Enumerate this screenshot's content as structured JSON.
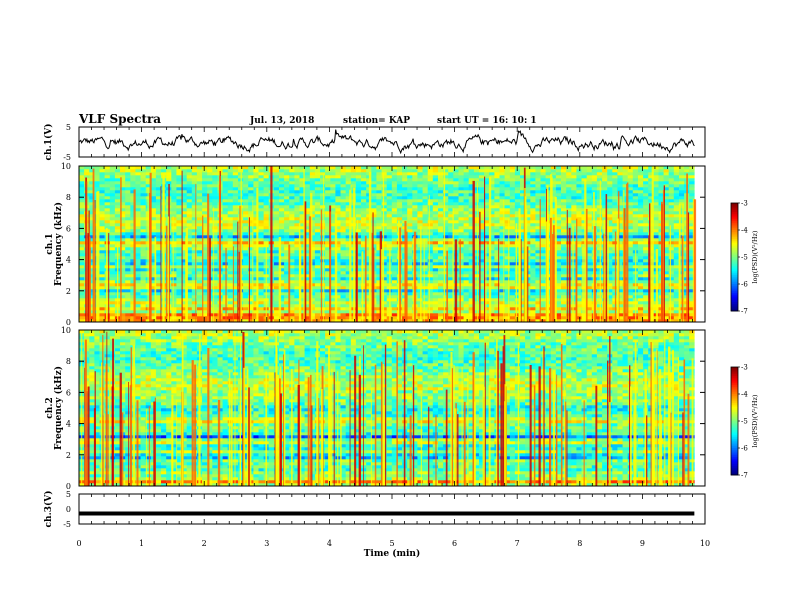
{
  "header": {
    "title": "VLF Spectra",
    "date": "Jul. 13, 2018",
    "station": "station= KAP",
    "start": "start UT =  16: 10: 1"
  },
  "chart_data": [
    {
      "type": "line",
      "panel": "ch1-waveform",
      "ylabel": "ch.1(V)",
      "ylim": [
        -5,
        5
      ],
      "yticks": [
        "5",
        "-5"
      ],
      "x_range_min": [
        0,
        9.83
      ],
      "description_series": "ch.1 voltage trace",
      "baseline_v": -0.3,
      "amplitude_v": 1.5
    },
    {
      "type": "heatmap",
      "panel": "ch1-spectrogram",
      "ylabel_line1": "ch.1",
      "ylabel_line2": "Frequency (kHz)",
      "ylim": [
        0,
        10
      ],
      "yticks": [
        "0",
        "2",
        "4",
        "6",
        "8",
        "10"
      ],
      "x_range_min": [
        0,
        9.83
      ],
      "colorbar": {
        "label": "log(PSD)(V²/Hz)",
        "range": [
          -7,
          -3
        ],
        "ticks": [
          "-3",
          "-4",
          "-5",
          "-6",
          "-7"
        ]
      },
      "bands_khz": [
        {
          "f": 0.2,
          "level": -3.6
        },
        {
          "f": 0.5,
          "level": -4.0
        },
        {
          "f": 0.9,
          "level": -4.2
        },
        {
          "f": 1.3,
          "level": -4.6
        },
        {
          "f": 2.0,
          "level": -5.6
        },
        {
          "f": 2.3,
          "level": -4.4
        },
        {
          "f": 2.8,
          "level": -5.5
        },
        {
          "f": 3.3,
          "level": -5.6
        },
        {
          "f": 3.8,
          "level": -5.8
        },
        {
          "f": 4.8,
          "level": -4.8
        },
        {
          "f": 5.1,
          "level": -4.3
        },
        {
          "f": 5.5,
          "level": -5.8
        }
      ]
    },
    {
      "type": "heatmap",
      "panel": "ch2-spectrogram",
      "ylabel_line1": "ch.2",
      "ylabel_line2": "Frequency (kHz)",
      "ylim": [
        0,
        10
      ],
      "yticks": [
        "0",
        "2",
        "4",
        "6",
        "8",
        "10"
      ],
      "x_range_min": [
        0,
        9.83
      ],
      "colorbar": {
        "label": "log(PSD)(V²/Hz)",
        "range": [
          -7,
          -3
        ],
        "ticks": [
          "-3",
          "-4",
          "-5",
          "-6",
          "-7"
        ]
      },
      "bands_khz": [
        {
          "f": 0.3,
          "level": -4.0
        },
        {
          "f": 0.8,
          "level": -4.8
        },
        {
          "f": 1.9,
          "level": -6.0
        },
        {
          "f": 2.5,
          "level": -5.7
        },
        {
          "f": 3.2,
          "level": -6.2
        },
        {
          "f": 3.6,
          "level": -5.2
        },
        {
          "f": 4.2,
          "level": -4.4
        },
        {
          "f": 5.0,
          "level": -5.5
        },
        {
          "f": 6.0,
          "level": -5.0
        }
      ]
    },
    {
      "type": "line",
      "panel": "ch3-waveform",
      "ylabel": "ch.3(V)",
      "xlabel": "Time (min)",
      "ylim": [
        -5,
        5
      ],
      "yticks": [
        "5",
        "0",
        "-5"
      ],
      "xlim": [
        0,
        10
      ],
      "xticks": [
        "0",
        "1",
        "2",
        "3",
        "4",
        "5",
        "6",
        "7",
        "8",
        "9",
        "10"
      ],
      "x_range_min": [
        0,
        9.83
      ],
      "constant_value_v": -1.5
    }
  ]
}
